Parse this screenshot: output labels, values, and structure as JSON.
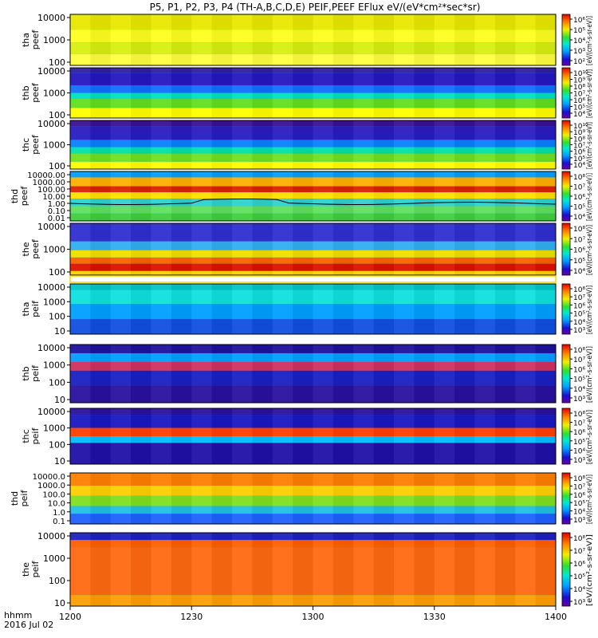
{
  "chart_data": {
    "type": "heatmap",
    "title": "P5, P1, P2, P3, P4 (TH-A,B,C,D,E) PEIF,PEEF EFlux eV/(eV*cm²*sec*sr)",
    "x_axis": {
      "ticks": [
        "1200",
        "1230",
        "1300",
        "1330",
        "1400"
      ],
      "corner_label": "hhmm",
      "date_label": "2016 Jul 02"
    },
    "colorbar_unit": "[eV/(cm²-s-sr-eV)]",
    "panels": [
      {
        "id": "tha_peef",
        "ylabel": [
          "tha",
          "peef"
        ],
        "yticks": [
          "10000",
          "1000",
          "100"
        ],
        "cbar_ticks": [
          "10⁶",
          "10⁵",
          "10⁴",
          "10³",
          "10²"
        ],
        "colorbar_label": "[eV/(cm²-s-sr-eV)]"
      },
      {
        "id": "thb_peef",
        "ylabel": [
          "thb",
          "peef"
        ],
        "yticks": [
          "10000",
          "1000",
          "100"
        ],
        "cbar_ticks": [
          "10¹⁰",
          "10⁹",
          "10⁸",
          "10⁷",
          "10⁶",
          "10⁵",
          "10⁴"
        ],
        "colorbar_label": "[eV/(cm²-s-sr-eV)]"
      },
      {
        "id": "thc_peef",
        "ylabel": [
          "thc",
          "peef"
        ],
        "yticks": [
          "10000",
          "1000",
          "100"
        ],
        "cbar_ticks": [
          "10¹⁰",
          "10⁹",
          "10⁸",
          "10⁷",
          "10⁶",
          "10⁵",
          "10⁴"
        ],
        "colorbar_label": "[eV/(cm²-s-sr-eV)]"
      },
      {
        "id": "thd_peef",
        "ylabel": [
          "thd",
          "peef"
        ],
        "yticks": [
          "10000.00",
          "1000.00",
          "100.00",
          "10.00",
          "1.00",
          "0.10",
          "0.01"
        ],
        "cbar_ticks": [
          "10⁸",
          "10⁷",
          "10⁶",
          "10⁵",
          "10⁴"
        ],
        "colorbar_label": "[eV/(cm²-s-sr-eV)]"
      },
      {
        "id": "the_peef",
        "ylabel": [
          "the",
          "peef"
        ],
        "yticks": [
          "10000",
          "1000",
          "100"
        ],
        "cbar_ticks": [
          "10⁸",
          "10⁷",
          "10⁶",
          "10⁵",
          "10⁴"
        ],
        "colorbar_label": "[eV/(cm²-s-sr-eV)]"
      },
      {
        "id": "tha_peif",
        "ylabel": [
          "tha",
          "peif"
        ],
        "yticks": [
          "10000",
          "1000",
          "100",
          "10"
        ],
        "cbar_ticks": [
          "10⁸",
          "10⁷",
          "10⁶",
          "10⁵",
          "10⁴",
          "10³"
        ],
        "colorbar_label": "[eV/(cm²-s-sr-eV)]"
      },
      {
        "id": "thb_peif",
        "ylabel": [
          "thb",
          "peif"
        ],
        "yticks": [
          "10000",
          "1000",
          "100",
          "10"
        ],
        "cbar_ticks": [
          "10⁸",
          "10⁷",
          "10⁶",
          "10⁵",
          "10⁴",
          "10³"
        ],
        "colorbar_label": "[eV/(cm²-s-sr-eV)]"
      },
      {
        "id": "thc_peif",
        "ylabel": [
          "thc",
          "peif"
        ],
        "yticks": [
          "10000",
          "1000",
          "100",
          "10"
        ],
        "cbar_ticks": [
          "10⁸",
          "10⁷",
          "10⁶",
          "10⁵",
          "10⁴",
          "10³"
        ],
        "colorbar_label": "[eV/(cm²-s-sr-eV)]"
      },
      {
        "id": "thd_peif",
        "ylabel": [
          "thd",
          "peif"
        ],
        "yticks": [
          "10000.0",
          "1000.0",
          "100.0",
          "10.0",
          "1.0",
          "0.1"
        ],
        "cbar_ticks": [
          "10⁸",
          "10⁷",
          "10⁶",
          "10⁵",
          "10⁴",
          "10³"
        ],
        "colorbar_label": "[eV/(cm²-s-sr-eV)]"
      },
      {
        "id": "the_peif",
        "ylabel": [
          "the",
          "peif"
        ],
        "yticks": [
          "10000",
          "1000",
          "100",
          "10"
        ],
        "cbar_ticks": [
          "10⁸",
          "10⁷",
          "10⁶",
          "10⁵",
          "10⁴",
          "10³"
        ],
        "colorbar_label": "[eV/(cm²-s-sr-eV)]"
      }
    ]
  }
}
